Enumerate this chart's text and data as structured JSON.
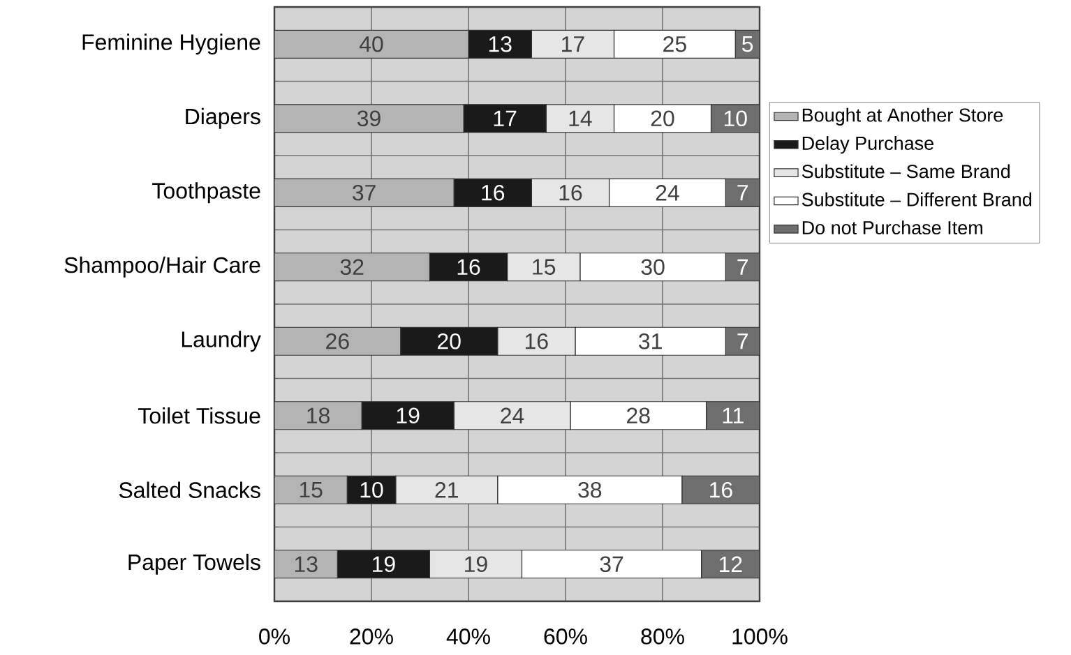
{
  "chart_data": {
    "type": "bar",
    "orientation": "horizontal",
    "stacked": true,
    "data_labels": true,
    "grid": "x",
    "legend": "right",
    "categories": [
      "Feminine Hygiene",
      "Diapers",
      "Toothpaste",
      "Shampoo/Hair Care",
      "Laundry",
      "Toilet Tissue",
      "Salted Snacks",
      "Paper Towels"
    ],
    "xlim": [
      0,
      100
    ],
    "xticks": [
      {
        "value": 0,
        "label": "0%"
      },
      {
        "value": 20,
        "label": "20%"
      },
      {
        "value": 40,
        "label": "40%"
      },
      {
        "value": 60,
        "label": "60%"
      },
      {
        "value": 80,
        "label": "80%"
      },
      {
        "value": 100,
        "label": "100%"
      }
    ],
    "series": [
      {
        "name": "Bought at Another Store",
        "color": "#b4b4b4",
        "values": [
          40,
          39,
          37,
          32,
          26,
          18,
          15,
          13
        ]
      },
      {
        "name": "Delay Purchase",
        "color": "#1a1a1a",
        "values": [
          13,
          17,
          16,
          16,
          20,
          19,
          10,
          19
        ]
      },
      {
        "name": "Substitute – Same Brand",
        "color": "#e6e6e6",
        "values": [
          17,
          14,
          16,
          15,
          16,
          24,
          21,
          19
        ]
      },
      {
        "name": "Substitute – Different Brand",
        "color": "#ffffff",
        "values": [
          25,
          20,
          24,
          30,
          31,
          28,
          38,
          37
        ]
      },
      {
        "name": "Do not Purchase Item",
        "color": "#6e6e6e",
        "values": [
          5,
          10,
          7,
          7,
          7,
          11,
          16,
          12
        ]
      }
    ]
  }
}
